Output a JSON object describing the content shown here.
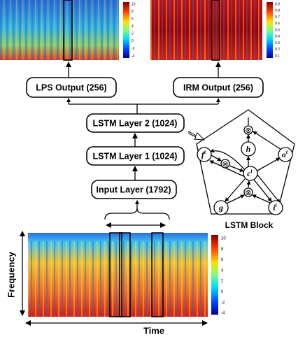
{
  "boxes": {
    "lps_output": "LPS Output (256)",
    "irm_output": "IRM Output (256)",
    "lstm_layer_2": "LSTM Layer 2 (1024)",
    "lstm_layer_1": "LSTM Layer 1 (1024)",
    "input_layer": "Input Layer (1792)"
  },
  "lstm_block": {
    "title": "LSTM Block",
    "operators": [
      "⊗",
      "⊗",
      "⊗"
    ],
    "nodes": [
      {
        "label": "f",
        "sup": "t"
      },
      {
        "label": "h"
      },
      {
        "label": "c",
        "sup": "t"
      },
      {
        "label": "o",
        "sup": "t"
      },
      {
        "label": "g"
      },
      {
        "label": "i",
        "sup": "t"
      }
    ]
  },
  "axes": {
    "frequency": "Frequency",
    "time": "Time"
  },
  "colorbars": {
    "lps": [
      10,
      8,
      6,
      4,
      2,
      0,
      -2,
      -4
    ],
    "irm": [
      0.9,
      0.8,
      0.7,
      0.6,
      0.5,
      0.4,
      0.3,
      0.2,
      0.1
    ],
    "input": [
      10,
      8,
      6,
      4,
      2,
      0,
      -2,
      -4
    ]
  }
}
